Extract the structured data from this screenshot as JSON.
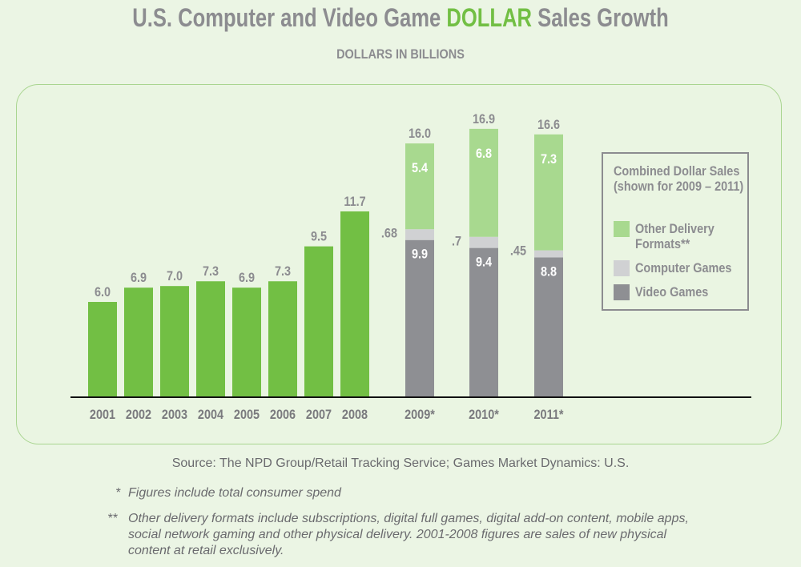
{
  "title_pre": "U.S. Computer and Video Game ",
  "title_highlight": "DOLLAR",
  "title_post": " Sales Growth",
  "subtitle": "DOLLARS IN BILLIONS",
  "source": "Source: The NPD Group/Retail Tracking Service; Games Market Dynamics: U.S.",
  "notes": [
    {
      "mark": "*",
      "text": "Figures include total consumer spend"
    },
    {
      "mark": "**",
      "text": "Other delivery formats include subscriptions, digital full games, digital add-on content, mobile apps, social network gaming and other physical delivery. 2001-2008 figures are sales of new physical content at retail exclusively."
    }
  ],
  "colors": {
    "retail": "#72bf44",
    "other_delivery": "#a8d98f",
    "computer": "#d0d1d3",
    "video": "#8e8f93",
    "text": "#8c8c90"
  },
  "chart_data": {
    "type": "bar",
    "title": "U.S. Computer and Video Game DOLLAR Sales Growth",
    "subtitle": "DOLLARS IN BILLIONS",
    "ylim": [
      0,
      17
    ],
    "grid": false,
    "legend_placement": "right",
    "single": {
      "categories": [
        "2001",
        "2002",
        "2003",
        "2004",
        "2005",
        "2006",
        "2007",
        "2008"
      ],
      "values": [
        6.0,
        6.9,
        7.0,
        7.3,
        6.9,
        7.3,
        9.5,
        11.7
      ],
      "labels": [
        "6.0",
        "6.9",
        "7.0",
        "7.3",
        "6.9",
        "7.3",
        "9.5",
        "11.7"
      ]
    },
    "stacked": {
      "categories": [
        "2009*",
        "2010*",
        "2011*"
      ],
      "totals": [
        "16.0",
        "16.9",
        "16.6"
      ],
      "series": [
        {
          "name": "Video Games",
          "values": [
            9.9,
            9.4,
            8.8
          ],
          "labels": [
            "9.9",
            "9.4",
            "8.8"
          ]
        },
        {
          "name": "Computer Games",
          "values": [
            0.68,
            0.7,
            0.45
          ],
          "labels": [
            ".68",
            ".7",
            ".45"
          ]
        },
        {
          "name": "Other Delivery Formats**",
          "values": [
            5.4,
            6.8,
            7.3
          ],
          "labels": [
            "5.4",
            "6.8",
            "7.3"
          ]
        }
      ]
    },
    "legend": {
      "title": "Combined Dollar Sales (shown for 2009 – 2011)",
      "items": [
        "Other Delivery Formats**",
        "Computer Games",
        "Video Games"
      ]
    }
  }
}
